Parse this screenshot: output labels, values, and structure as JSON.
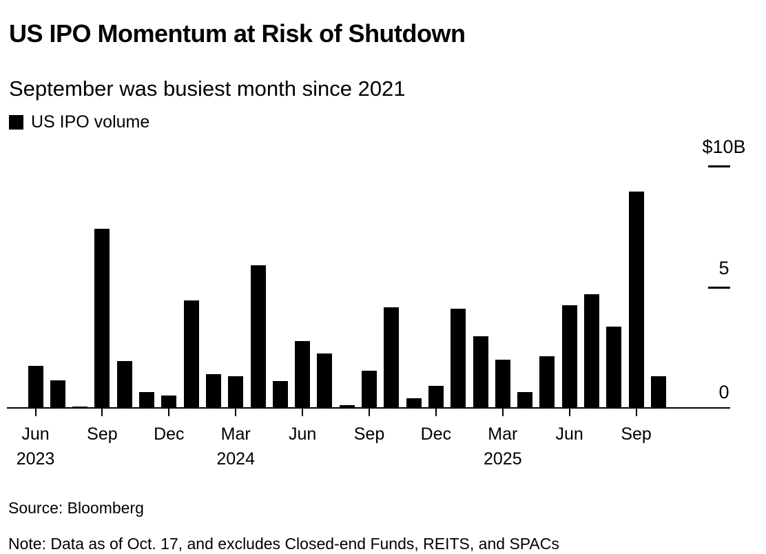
{
  "header": {
    "title": "US IPO Momentum at Risk of Shutdown",
    "subtitle": "September was busiest month since 2021"
  },
  "legend": {
    "label": "US IPO volume",
    "swatch_color": "#000000"
  },
  "footer": {
    "source": "Source: Bloomberg",
    "note": "Note: Data as of Oct. 17, and excludes Closed-end Funds, REITS, and SPACs"
  },
  "chart_data": {
    "type": "bar",
    "title": "US IPO Momentum at Risk of Shutdown",
    "subtitle": "September was busiest month since 2021",
    "series_name": "US IPO volume",
    "unit": "$B",
    "ylabel": "US IPO volume ($B)",
    "xlabel": "",
    "ylim": [
      0,
      10
    ],
    "grid": false,
    "legend_position": "top-left",
    "y_axis_position": "right",
    "bar_color": "#000000",
    "categories": [
      "Jun 2023",
      "Jul 2023",
      "Aug 2023",
      "Sep 2023",
      "Oct 2023",
      "Nov 2023",
      "Dec 2023",
      "Jan 2024",
      "Feb 2024",
      "Mar 2024",
      "Apr 2024",
      "May 2024",
      "Jun 2024",
      "Jul 2024",
      "Aug 2024",
      "Sep 2024",
      "Oct 2024",
      "Nov 2024",
      "Dec 2024",
      "Jan 2025",
      "Feb 2025",
      "Mar 2025",
      "Apr 2025",
      "May 2025",
      "Jun 2025",
      "Jul 2025",
      "Aug 2025",
      "Sep 2025",
      "Oct 2025"
    ],
    "values": [
      1.75,
      1.15,
      0.05,
      7.4,
      1.95,
      0.65,
      0.5,
      4.45,
      1.4,
      1.3,
      5.9,
      1.1,
      2.75,
      2.25,
      0.1,
      1.55,
      4.15,
      0.4,
      0.9,
      4.1,
      2.95,
      2.0,
      0.65,
      2.15,
      4.25,
      4.7,
      3.35,
      8.95,
      1.3
    ],
    "y_ticks": [
      {
        "label": "$10B",
        "value": 10,
        "dash": true
      },
      {
        "label": "5",
        "value": 5,
        "dash": true
      },
      {
        "label": "0",
        "value": 0,
        "dash": false
      }
    ],
    "x_ticks": [
      {
        "index": 0,
        "label": "Jun",
        "year": "2023"
      },
      {
        "index": 3,
        "label": "Sep"
      },
      {
        "index": 6,
        "label": "Dec"
      },
      {
        "index": 9,
        "label": "Mar",
        "year": "2024"
      },
      {
        "index": 12,
        "label": "Jun"
      },
      {
        "index": 15,
        "label": "Sep"
      },
      {
        "index": 18,
        "label": "Dec"
      },
      {
        "index": 21,
        "label": "Mar",
        "year": "2025"
      },
      {
        "index": 24,
        "label": "Jun"
      },
      {
        "index": 27,
        "label": "Sep"
      }
    ]
  }
}
